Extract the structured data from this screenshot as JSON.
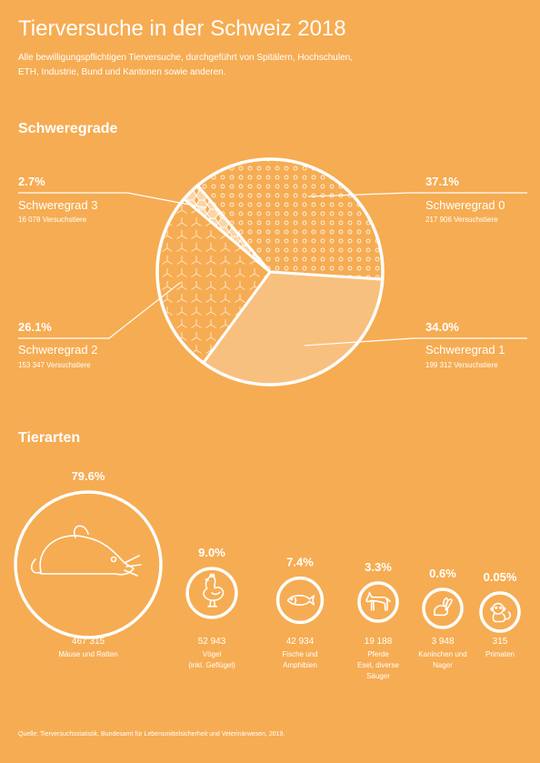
{
  "title": "Tierversuche in der Schweiz 2018",
  "subtitle": "Alle bewilligungspflichtigen Tierversuche, durchgeführt von Spitälern, Hochschulen, ETH, Industrie, Bund und Kantonen sowie anderen.",
  "sections": {
    "severity": "Schweregrade",
    "species": "Tierarten"
  },
  "source": "Quelle: Tierversuchsstatistik, Bundesamt für Lebensmittelsicherheit und Veterinärwesen, 2019.",
  "colors": {
    "background": "#f6ac52",
    "grade1_fill": "#f8c07e",
    "line": "#ffffff"
  },
  "chart_data": [
    {
      "type": "pie",
      "title": "Schweregrade",
      "categories": [
        "Schweregrad 0",
        "Schweregrad 1",
        "Schweregrad 2",
        "Schweregrad 3"
      ],
      "values": [
        37.1,
        34.0,
        26.1,
        2.7
      ],
      "percent_labels": [
        "37.1%",
        "34.0%",
        "26.1%",
        "2.7%"
      ],
      "counts": [
        "217 906 Versuchstiere",
        "199 312 Versuchstiere",
        "153 347 Versuchstiere",
        "16 078 Versuchstiere"
      ],
      "patterns": [
        "dots",
        "solid-light",
        "y-lattice",
        "honeycomb"
      ]
    },
    {
      "type": "bubble",
      "title": "Tierarten",
      "categories": [
        "Mäuse und Ratten",
        "Vögel (inkl. Geflügel)",
        "Fische und Amphibien",
        "Pferde Esel, diverse Säuger",
        "Kaninchen und Nager",
        "Primaten"
      ],
      "values": [
        79.6,
        9.0,
        7.4,
        3.3,
        0.6,
        0.05
      ],
      "percent_labels": [
        "79.6%",
        "9.0%",
        "7.4%",
        "3.3%",
        "0.6%",
        "0.05%"
      ],
      "counts": [
        "467 315",
        "52 943",
        "42 934",
        "19 188",
        "3 948",
        "315"
      ],
      "label_lines": [
        [
          "Mäuse und Ratten"
        ],
        [
          "Vögel",
          "(inkl. Geflügel)"
        ],
        [
          "Fische und",
          "Amphibien"
        ],
        [
          "Pferde",
          "Esel, diverse",
          "Säuger"
        ],
        [
          "Kaninchen und",
          "Nager"
        ],
        [
          "Primaten"
        ]
      ],
      "icons": [
        "mouse-icon",
        "chicken-icon",
        "fish-icon",
        "horse-icon",
        "rabbit-icon",
        "monkey-icon"
      ]
    }
  ]
}
